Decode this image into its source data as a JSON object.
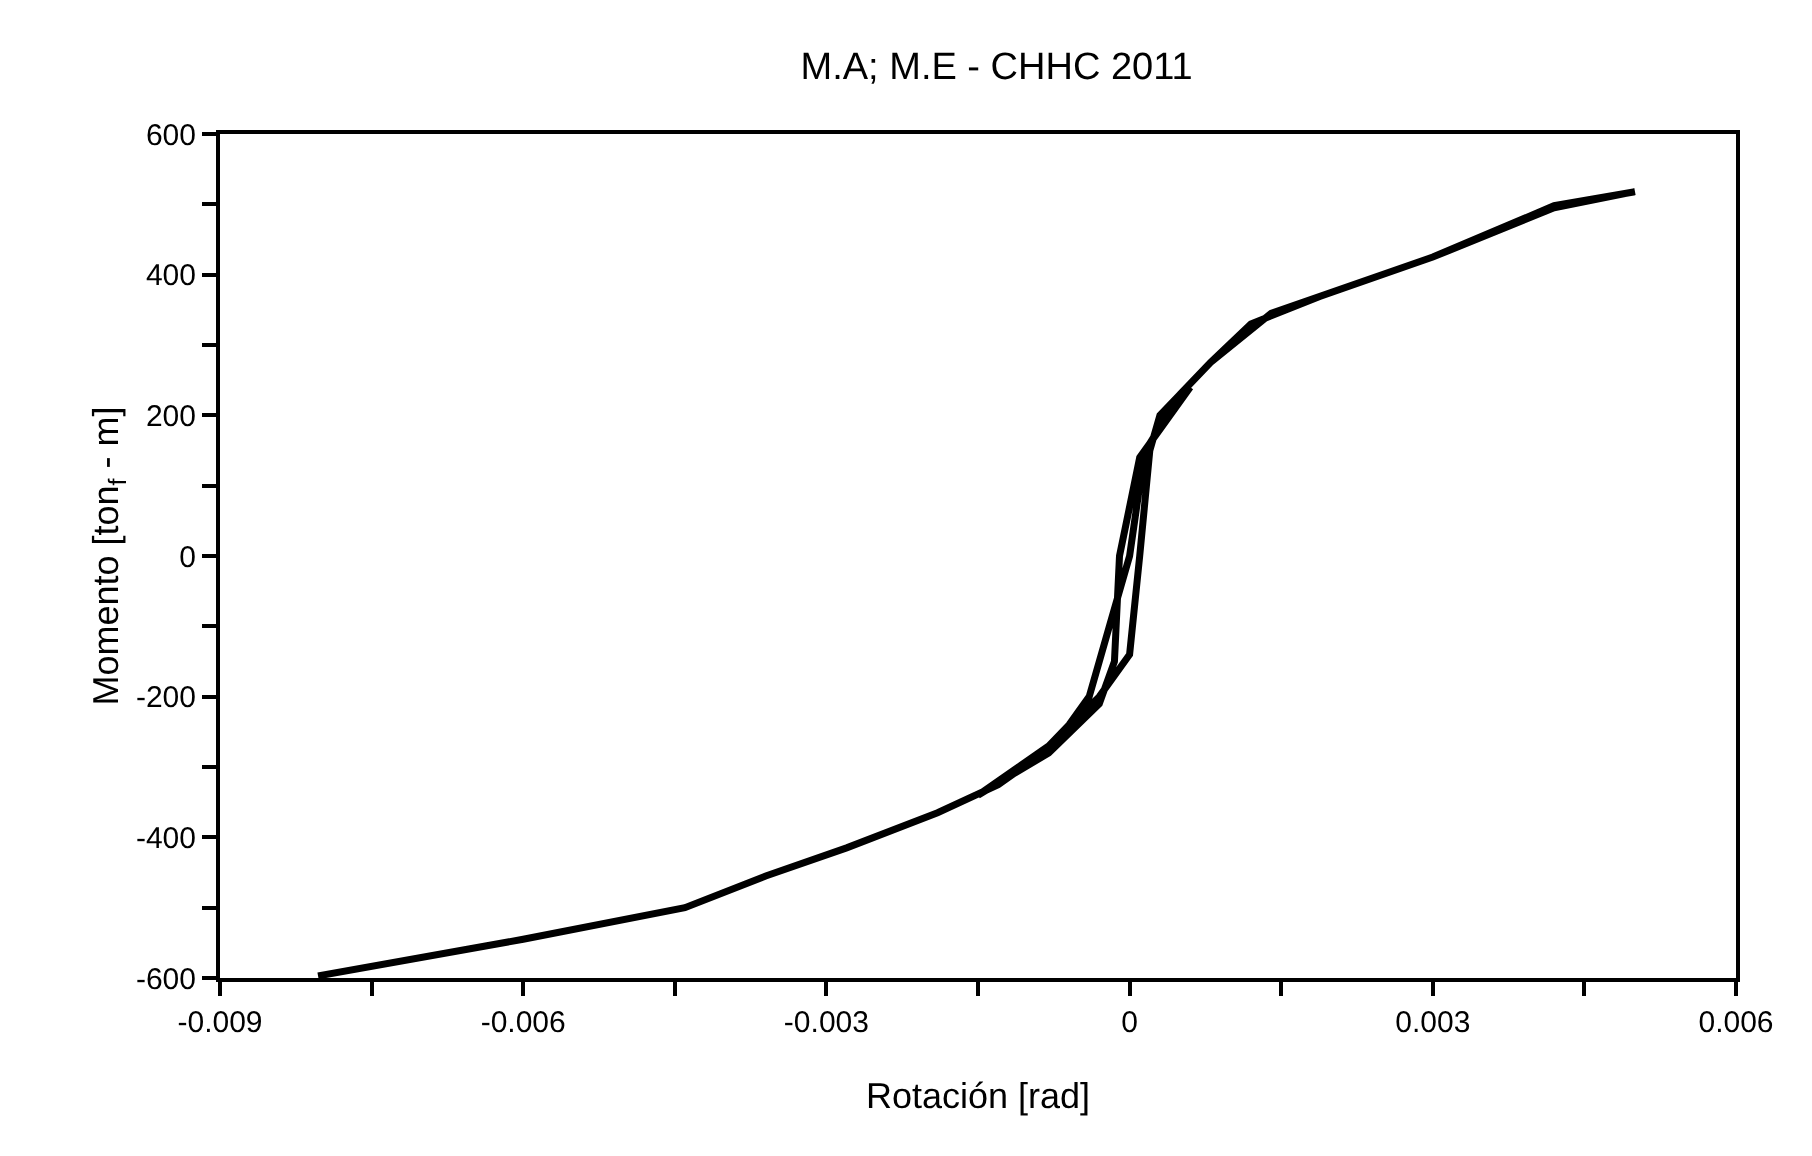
{
  "chart_data": {
    "type": "line",
    "title": "M.A; M.E - CHHC 2011",
    "xlabel": "Rotación [rad]",
    "ylabel": "Momento [ton$_{f}$ - m]",
    "x": [
      -0.00803,
      -0.006,
      -0.0044,
      -0.0036,
      -0.0028,
      -0.0019,
      -0.0013,
      -0.0009,
      -0.0006,
      -0.0004,
      -0.0002,
      0,
      0.0001,
      0.0002,
      0.0005,
      0.0008,
      0.0012,
      0.0019,
      0.003,
      0.0042,
      0.005,
      0.0042,
      0.003,
      0.0014,
      0.0008,
      0.0003,
      0.0002,
      0.0001,
      0,
      -0.0003,
      -0.0008,
      -0.0015,
      -0.0008,
      -0.0003,
      -0.00015,
      -0.0001,
      0.0001,
      0.0003,
      0.0006
    ],
    "series": [
      {
        "color": "#000000",
        "values": [
          -597,
          -545,
          -500,
          -455,
          -415,
          -365,
          -325,
          -285,
          -240,
          -200,
          -100,
          0,
          100,
          160,
          230,
          275,
          330,
          370,
          425,
          498,
          518,
          495,
          425,
          345,
          275,
          200,
          150,
          0,
          -140,
          -200,
          -270,
          -340,
          -280,
          -210,
          -150,
          0,
          140,
          180,
          240
        ]
      }
    ],
    "xlim": [
      -0.009,
      0.006
    ],
    "ylim": [
      -600,
      600
    ],
    "xticks": [
      -0.009,
      {
        "value": -0.0075,
        "label": null
      },
      -0.006,
      {
        "value": -0.0045,
        "label": null
      },
      -0.003,
      {
        "value": -0.0015,
        "label": null
      },
      0,
      {
        "value": 0.0015,
        "label": null
      },
      0.003,
      {
        "value": 0.0045,
        "label": null
      },
      0.006
    ],
    "yticks": [
      -600,
      {
        "value": -500,
        "label": null
      },
      -400,
      {
        "value": -300,
        "label": null
      },
      -200,
      {
        "value": -100,
        "label": null
      },
      0,
      {
        "value": 100,
        "label": null
      },
      200,
      {
        "value": 300,
        "label": null
      },
      400,
      {
        "value": 500,
        "label": null
      },
      600
    ],
    "grid": false,
    "marker": "none",
    "line_style": "solid"
  }
}
